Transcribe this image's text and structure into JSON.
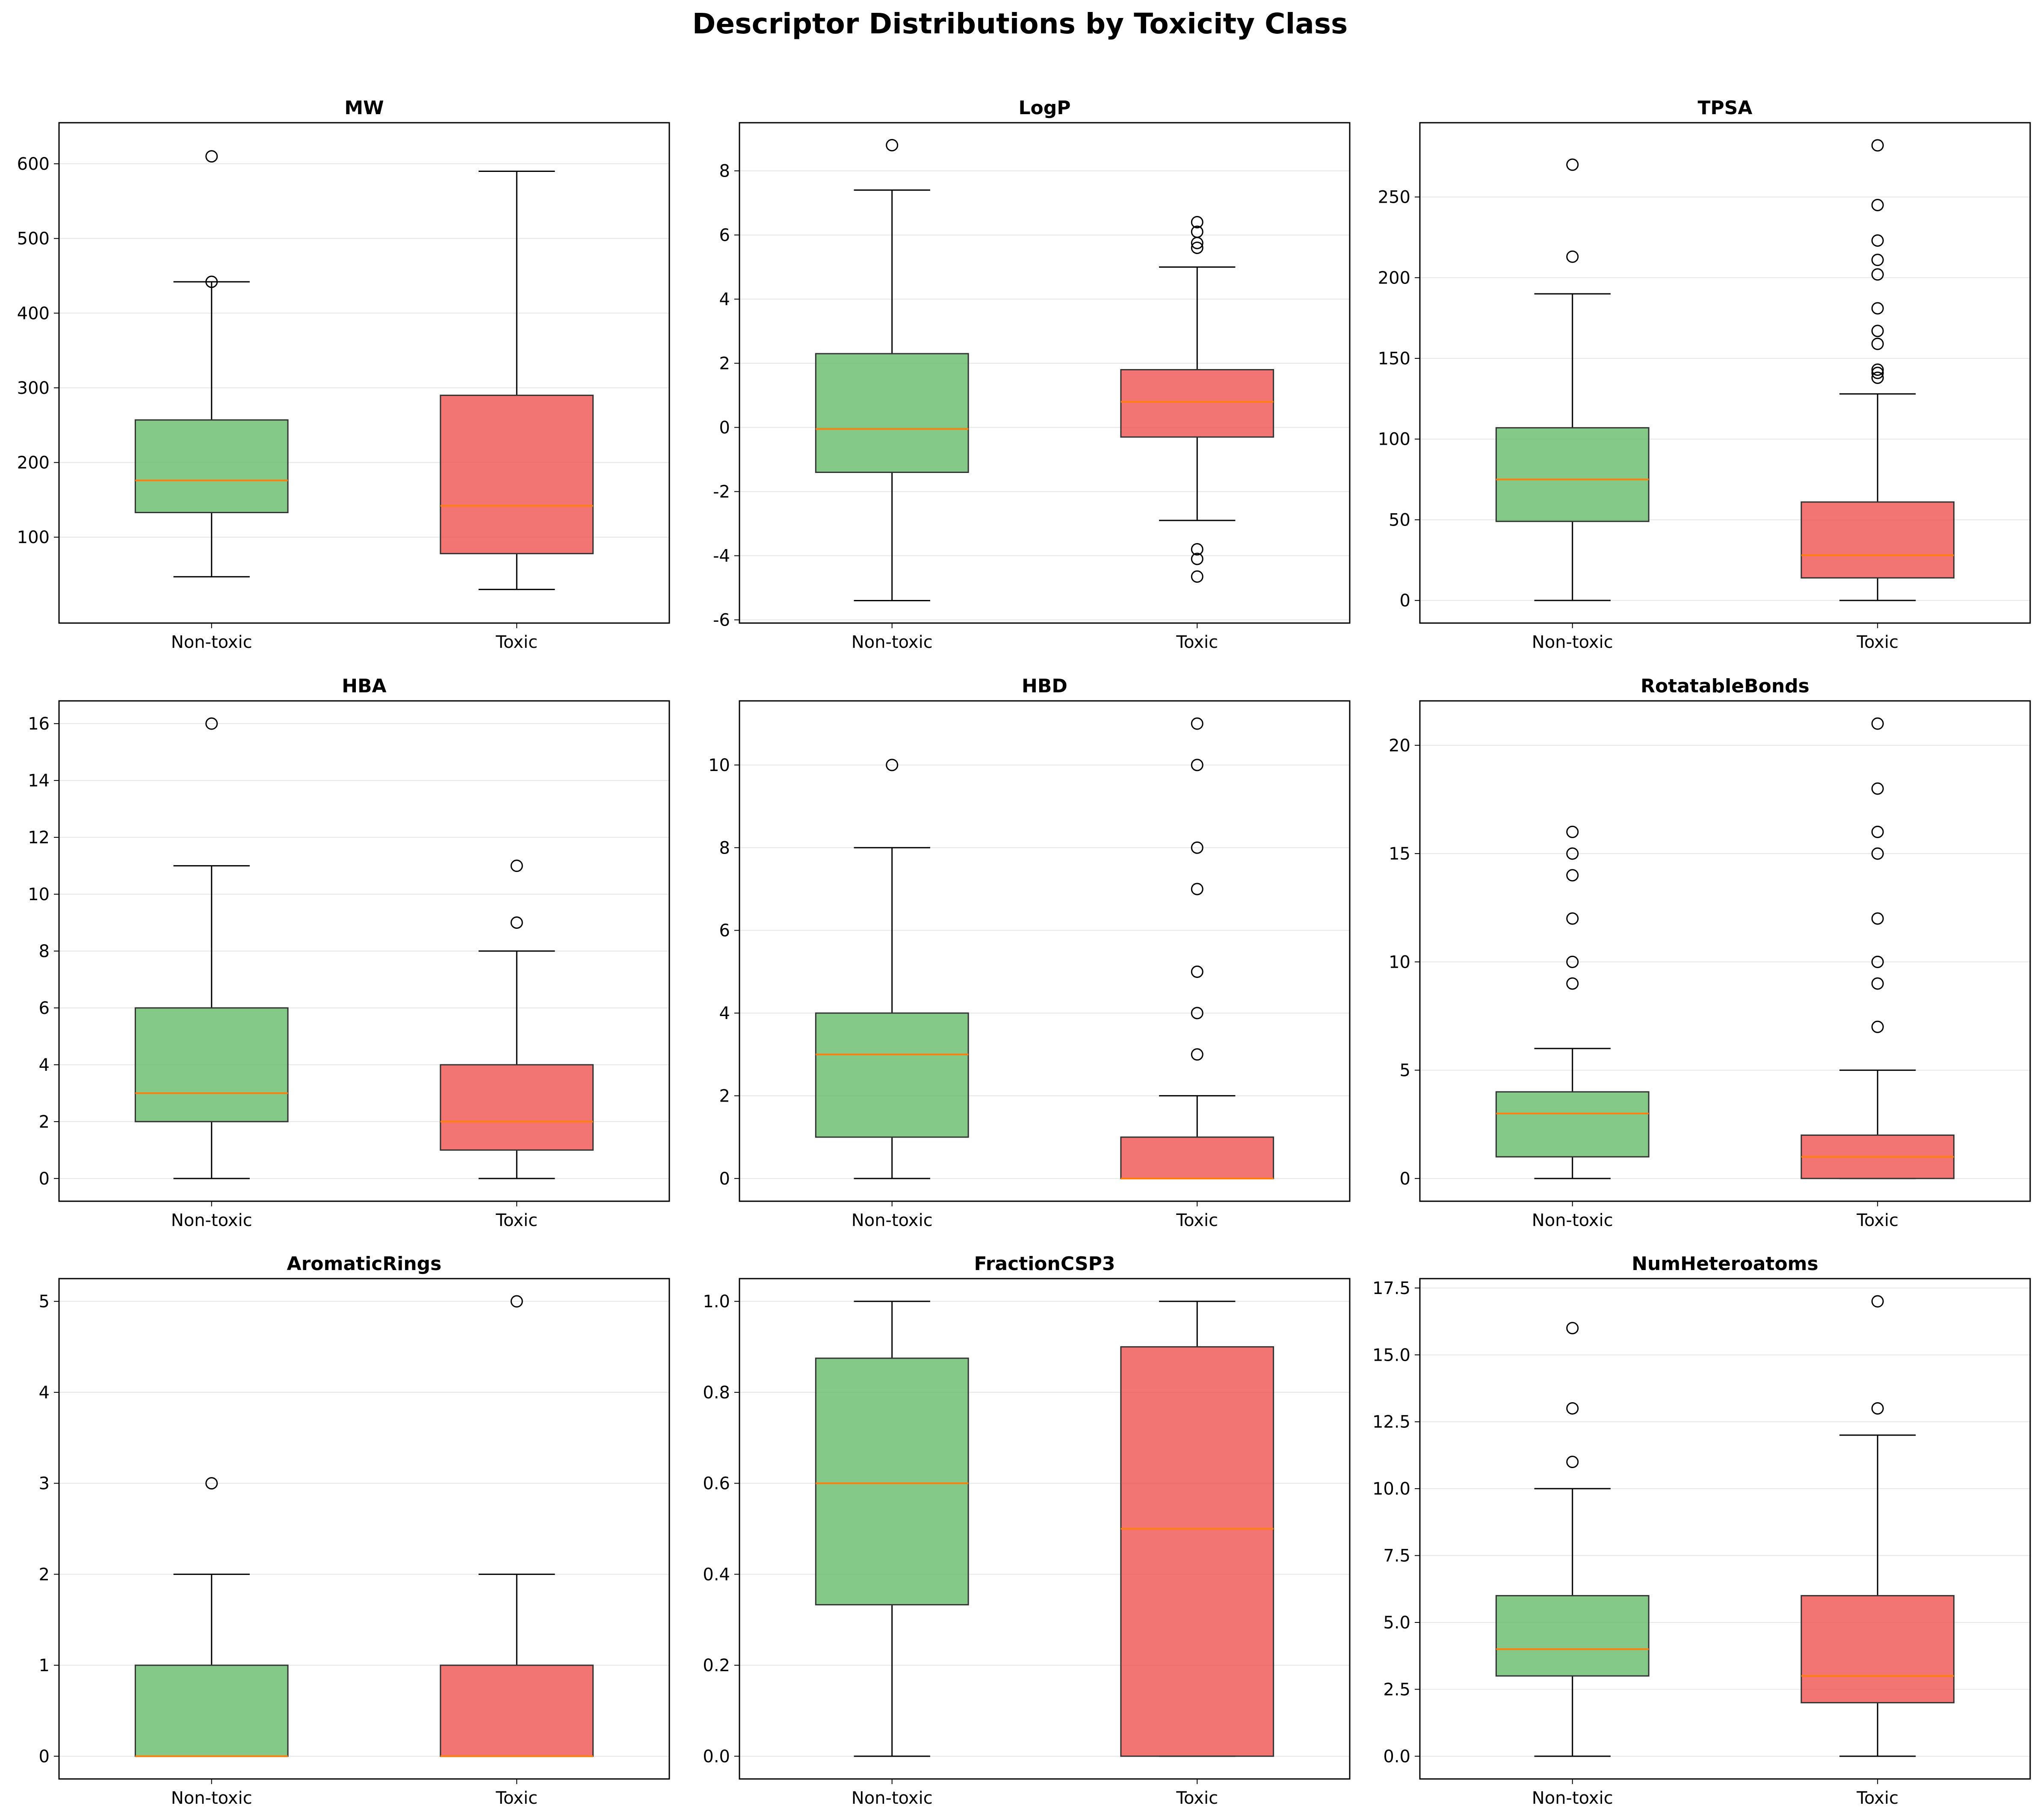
{
  "title": "Descriptor Distributions by Toxicity Class",
  "colors": {
    "non_toxic": "#66bb6a",
    "toxic": "#ef5350",
    "median": "#ff7f0e",
    "grid": "#e6e6e6"
  },
  "chart_data": [
    {
      "type": "boxplot",
      "title": "MW",
      "categories": [
        "Non-toxic",
        "Toxic"
      ],
      "ylim": [
        -15,
        655
      ],
      "yticks": [
        100,
        200,
        300,
        400,
        500,
        600
      ],
      "boxes": [
        {
          "category": "Non-toxic",
          "whisker_low": 47,
          "q1": 133,
          "median": 176,
          "q3": 257,
          "whisker_high": 442,
          "outliers": [
            442,
            610
          ]
        },
        {
          "category": "Toxic",
          "whisker_low": 30,
          "q1": 78,
          "median": 142,
          "q3": 290,
          "whisker_high": 590,
          "outliers": []
        }
      ]
    },
    {
      "type": "boxplot",
      "title": "LogP",
      "categories": [
        "Non-toxic",
        "Toxic"
      ],
      "ylim": [
        -6.1,
        9.5
      ],
      "yticks": [
        -6,
        -4,
        -2,
        0,
        2,
        4,
        6,
        8
      ],
      "boxes": [
        {
          "category": "Non-toxic",
          "whisker_low": -5.4,
          "q1": -1.4,
          "median": -0.05,
          "q3": 2.3,
          "whisker_high": 7.4,
          "outliers": [
            8.8
          ]
        },
        {
          "category": "Toxic",
          "whisker_low": -2.9,
          "q1": -0.3,
          "median": 0.8,
          "q3": 1.8,
          "whisker_high": 5.0,
          "outliers": [
            5.6,
            5.75,
            6.1,
            6.4,
            -3.8,
            -4.1,
            -4.65
          ]
        }
      ]
    },
    {
      "type": "boxplot",
      "title": "TPSA",
      "categories": [
        "Non-toxic",
        "Toxic"
      ],
      "ylim": [
        -14,
        296
      ],
      "yticks": [
        0,
        50,
        100,
        150,
        200,
        250
      ],
      "boxes": [
        {
          "category": "Non-toxic",
          "whisker_low": 0,
          "q1": 49,
          "median": 75,
          "q3": 107,
          "whisker_high": 190,
          "outliers": [
            213,
            270
          ]
        },
        {
          "category": "Toxic",
          "whisker_low": 0,
          "q1": 14,
          "median": 28,
          "q3": 61,
          "whisker_high": 128,
          "outliers": [
            138,
            141,
            143,
            159,
            167,
            181,
            202,
            211,
            223,
            245,
            282
          ]
        }
      ]
    },
    {
      "type": "boxplot",
      "title": "HBA",
      "categories": [
        "Non-toxic",
        "Toxic"
      ],
      "ylim": [
        -0.8,
        16.8
      ],
      "yticks": [
        0,
        2,
        4,
        6,
        8,
        10,
        12,
        14,
        16
      ],
      "boxes": [
        {
          "category": "Non-toxic",
          "whisker_low": 0,
          "q1": 2,
          "median": 3,
          "q3": 6,
          "whisker_high": 11,
          "outliers": [
            16
          ]
        },
        {
          "category": "Toxic",
          "whisker_low": 0,
          "q1": 1,
          "median": 2,
          "q3": 4,
          "whisker_high": 8,
          "outliers": [
            9,
            11
          ]
        }
      ]
    },
    {
      "type": "boxplot",
      "title": "HBD",
      "categories": [
        "Non-toxic",
        "Toxic"
      ],
      "ylim": [
        -0.55,
        11.55
      ],
      "yticks": [
        0,
        2,
        4,
        6,
        8,
        10
      ],
      "boxes": [
        {
          "category": "Non-toxic",
          "whisker_low": 0,
          "q1": 1,
          "median": 3,
          "q3": 4,
          "whisker_high": 8,
          "outliers": [
            10
          ]
        },
        {
          "category": "Toxic",
          "whisker_low": 0,
          "q1": 0,
          "median": 0,
          "q3": 1,
          "whisker_high": 2,
          "outliers": [
            3,
            4,
            5,
            7,
            8,
            10,
            11
          ]
        }
      ]
    },
    {
      "type": "boxplot",
      "title": "RotatableBonds",
      "categories": [
        "Non-toxic",
        "Toxic"
      ],
      "ylim": [
        -1.05,
        22.05
      ],
      "yticks": [
        0,
        5,
        10,
        15,
        20
      ],
      "boxes": [
        {
          "category": "Non-toxic",
          "whisker_low": 0,
          "q1": 1,
          "median": 3,
          "q3": 4,
          "whisker_high": 6,
          "outliers": [
            9,
            10,
            12,
            14,
            15,
            16
          ]
        },
        {
          "category": "Toxic",
          "whisker_low": 0,
          "q1": 0,
          "median": 1,
          "q3": 2,
          "whisker_high": 5,
          "outliers": [
            7,
            9,
            10,
            12,
            15,
            16,
            18,
            21
          ]
        }
      ]
    },
    {
      "type": "boxplot",
      "title": "AromaticRings",
      "categories": [
        "Non-toxic",
        "Toxic"
      ],
      "ylim": [
        -0.25,
        5.25
      ],
      "yticks": [
        0,
        1,
        2,
        3,
        4,
        5
      ],
      "boxes": [
        {
          "category": "Non-toxic",
          "whisker_low": 0,
          "q1": 0,
          "median": 0,
          "q3": 1,
          "whisker_high": 2,
          "outliers": [
            3
          ]
        },
        {
          "category": "Toxic",
          "whisker_low": 0,
          "q1": 0,
          "median": 0,
          "q3": 1,
          "whisker_high": 2,
          "outliers": [
            5
          ]
        }
      ]
    },
    {
      "type": "boxplot",
      "title": "FractionCSP3",
      "categories": [
        "Non-toxic",
        "Toxic"
      ],
      "ylim": [
        -0.05,
        1.05
      ],
      "yticks": [
        0.0,
        0.2,
        0.4,
        0.6,
        0.8,
        1.0
      ],
      "tick_decimals": 1,
      "boxes": [
        {
          "category": "Non-toxic",
          "whisker_low": 0,
          "q1": 0.333,
          "median": 0.6,
          "q3": 0.875,
          "whisker_high": 1.0,
          "outliers": []
        },
        {
          "category": "Toxic",
          "whisker_low": 0,
          "q1": 0,
          "median": 0.5,
          "q3": 0.9,
          "whisker_high": 1.0,
          "outliers": []
        }
      ]
    },
    {
      "type": "boxplot",
      "title": "NumHeteroatoms",
      "categories": [
        "Non-toxic",
        "Toxic"
      ],
      "ylim": [
        -0.85,
        17.85
      ],
      "yticks": [
        0.0,
        2.5,
        5.0,
        7.5,
        10.0,
        12.5,
        15.0,
        17.5
      ],
      "tick_decimals": 1,
      "boxes": [
        {
          "category": "Non-toxic",
          "whisker_low": 0,
          "q1": 3,
          "median": 4,
          "q3": 6,
          "whisker_high": 10,
          "outliers": [
            11,
            13,
            16
          ]
        },
        {
          "category": "Toxic",
          "whisker_low": 0,
          "q1": 2,
          "median": 3,
          "q3": 6,
          "whisker_high": 12,
          "outliers": [
            13,
            17
          ]
        }
      ]
    }
  ]
}
